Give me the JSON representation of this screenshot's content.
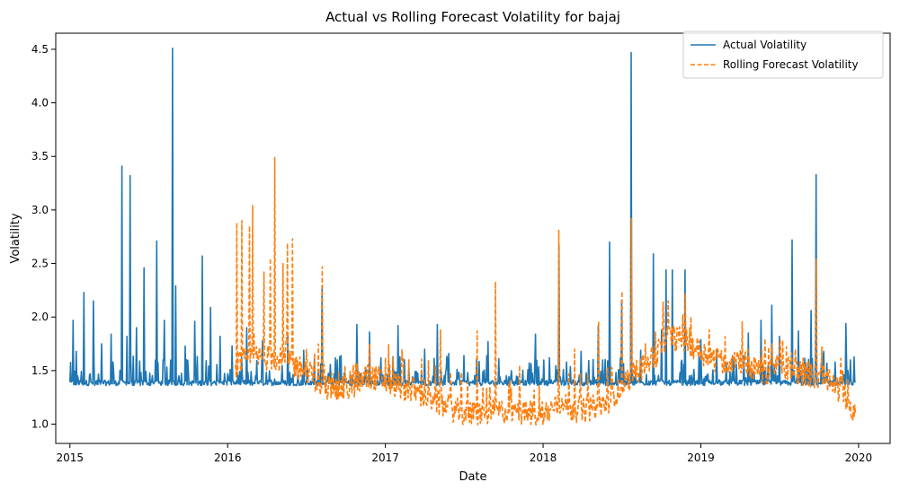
{
  "chart_data": {
    "type": "line",
    "title": "Actual vs Rolling Forecast Volatility for bajaj",
    "xlabel": "Date",
    "ylabel": "Volatility",
    "xlim": [
      2014.91,
      2020.2
    ],
    "ylim": [
      0.82,
      4.65
    ],
    "x_ticks": [
      2015,
      2016,
      2017,
      2018,
      2019,
      2020
    ],
    "x_tick_labels": [
      "2015",
      "2016",
      "2017",
      "2018",
      "2019",
      "2020"
    ],
    "y_ticks": [
      1.0,
      1.5,
      2.0,
      2.5,
      3.0,
      3.5,
      4.0,
      4.5
    ],
    "y_tick_labels": [
      "1.0",
      "1.5",
      "2.0",
      "2.5",
      "3.0",
      "3.5",
      "4.0",
      "4.5"
    ],
    "grid": false,
    "legend_position": "top-right",
    "series": [
      {
        "name": "Actual Volatility",
        "color": "#1f77b4",
        "style": "solid",
        "x_start": 2015.0,
        "x_end": 2019.98,
        "baseline": 1.36,
        "spikes": [
          [
            2015.02,
            1.97
          ],
          [
            2015.04,
            1.68
          ],
          [
            2015.09,
            2.23
          ],
          [
            2015.15,
            2.15
          ],
          [
            2015.2,
            1.75
          ],
          [
            2015.26,
            1.84
          ],
          [
            2015.33,
            3.41
          ],
          [
            2015.36,
            1.82
          ],
          [
            2015.38,
            3.32
          ],
          [
            2015.42,
            1.9
          ],
          [
            2015.47,
            2.46
          ],
          [
            2015.55,
            2.71
          ],
          [
            2015.6,
            1.97
          ],
          [
            2015.65,
            4.51
          ],
          [
            2015.67,
            2.29
          ],
          [
            2015.73,
            1.73
          ],
          [
            2015.79,
            1.96
          ],
          [
            2015.84,
            2.57
          ],
          [
            2015.89,
            2.09
          ],
          [
            2015.95,
            1.82
          ],
          [
            2016.03,
            1.73
          ],
          [
            2016.12,
            1.9
          ],
          [
            2016.22,
            1.78
          ],
          [
            2016.38,
            1.85
          ],
          [
            2016.48,
            1.69
          ],
          [
            2016.6,
            2.29
          ],
          [
            2016.72,
            1.64
          ],
          [
            2016.82,
            1.93
          ],
          [
            2016.9,
            1.86
          ],
          [
            2017.05,
            1.63
          ],
          [
            2017.08,
            1.92
          ],
          [
            2017.15,
            1.52
          ],
          [
            2017.25,
            1.7
          ],
          [
            2017.33,
            1.93
          ],
          [
            2017.4,
            1.66
          ],
          [
            2017.5,
            1.64
          ],
          [
            2017.58,
            1.61
          ],
          [
            2017.65,
            1.77
          ],
          [
            2017.72,
            1.61
          ],
          [
            2017.8,
            1.5
          ],
          [
            2017.95,
            1.84
          ],
          [
            2018.04,
            1.62
          ],
          [
            2018.1,
            2.68
          ],
          [
            2018.15,
            1.58
          ],
          [
            2018.24,
            1.68
          ],
          [
            2018.35,
            1.92
          ],
          [
            2018.42,
            2.7
          ],
          [
            2018.5,
            2.15
          ],
          [
            2018.56,
            4.47
          ],
          [
            2018.62,
            1.69
          ],
          [
            2018.7,
            2.59
          ],
          [
            2018.75,
            1.88
          ],
          [
            2018.78,
            2.44
          ],
          [
            2018.82,
            2.44
          ],
          [
            2018.9,
            2.44
          ],
          [
            2019.0,
            1.79
          ],
          [
            2019.1,
            1.69
          ],
          [
            2019.2,
            1.64
          ],
          [
            2019.3,
            1.85
          ],
          [
            2019.38,
            1.97
          ],
          [
            2019.45,
            2.11
          ],
          [
            2019.5,
            1.82
          ],
          [
            2019.58,
            2.72
          ],
          [
            2019.62,
            1.87
          ],
          [
            2019.7,
            2.06
          ],
          [
            2019.73,
            3.33
          ],
          [
            2019.78,
            1.68
          ],
          [
            2019.85,
            1.58
          ],
          [
            2019.92,
            1.94
          ]
        ]
      },
      {
        "name": "Rolling Forecast Volatility",
        "color": "#ff7f0e",
        "style": "dashed",
        "x_start": 2016.05,
        "x_end": 2019.98,
        "trend": [
          [
            2016.05,
            1.55
          ],
          [
            2016.15,
            1.62
          ],
          [
            2016.3,
            1.62
          ],
          [
            2016.5,
            1.5
          ],
          [
            2016.6,
            1.35
          ],
          [
            2016.75,
            1.32
          ],
          [
            2016.9,
            1.45
          ],
          [
            2017.05,
            1.38
          ],
          [
            2017.2,
            1.3
          ],
          [
            2017.35,
            1.18
          ],
          [
            2017.5,
            1.1
          ],
          [
            2017.6,
            1.1
          ],
          [
            2017.75,
            1.12
          ],
          [
            2017.9,
            1.1
          ],
          [
            2018.0,
            1.1
          ],
          [
            2018.1,
            1.18
          ],
          [
            2018.25,
            1.12
          ],
          [
            2018.4,
            1.2
          ],
          [
            2018.5,
            1.35
          ],
          [
            2018.6,
            1.5
          ],
          [
            2018.7,
            1.62
          ],
          [
            2018.8,
            1.82
          ],
          [
            2018.9,
            1.78
          ],
          [
            2019.0,
            1.68
          ],
          [
            2019.1,
            1.6
          ],
          [
            2019.25,
            1.58
          ],
          [
            2019.4,
            1.48
          ],
          [
            2019.5,
            1.55
          ],
          [
            2019.6,
            1.5
          ],
          [
            2019.7,
            1.45
          ],
          [
            2019.8,
            1.4
          ],
          [
            2019.9,
            1.3
          ],
          [
            2019.98,
            1.05
          ]
        ],
        "spikes": [
          [
            2016.06,
            2.88
          ],
          [
            2016.09,
            2.9
          ],
          [
            2016.14,
            2.85
          ],
          [
            2016.16,
            3.04
          ],
          [
            2016.23,
            2.42
          ],
          [
            2016.27,
            2.55
          ],
          [
            2016.3,
            3.49
          ],
          [
            2016.35,
            2.5
          ],
          [
            2016.38,
            2.69
          ],
          [
            2016.41,
            2.73
          ],
          [
            2016.6,
            2.47
          ],
          [
            2016.9,
            1.75
          ],
          [
            2017.15,
            1.6
          ],
          [
            2017.35,
            1.88
          ],
          [
            2017.58,
            1.87
          ],
          [
            2017.7,
            2.33
          ],
          [
            2017.85,
            1.55
          ],
          [
            2018.1,
            2.81
          ],
          [
            2018.2,
            1.7
          ],
          [
            2018.35,
            1.96
          ],
          [
            2018.5,
            2.24
          ],
          [
            2018.56,
            2.92
          ],
          [
            2018.65,
            1.75
          ],
          [
            2018.85,
            1.9
          ],
          [
            2019.05,
            1.75
          ],
          [
            2019.45,
            1.75
          ],
          [
            2019.6,
            1.7
          ],
          [
            2019.73,
            2.54
          ],
          [
            2019.9,
            1.5
          ]
        ]
      }
    ]
  }
}
